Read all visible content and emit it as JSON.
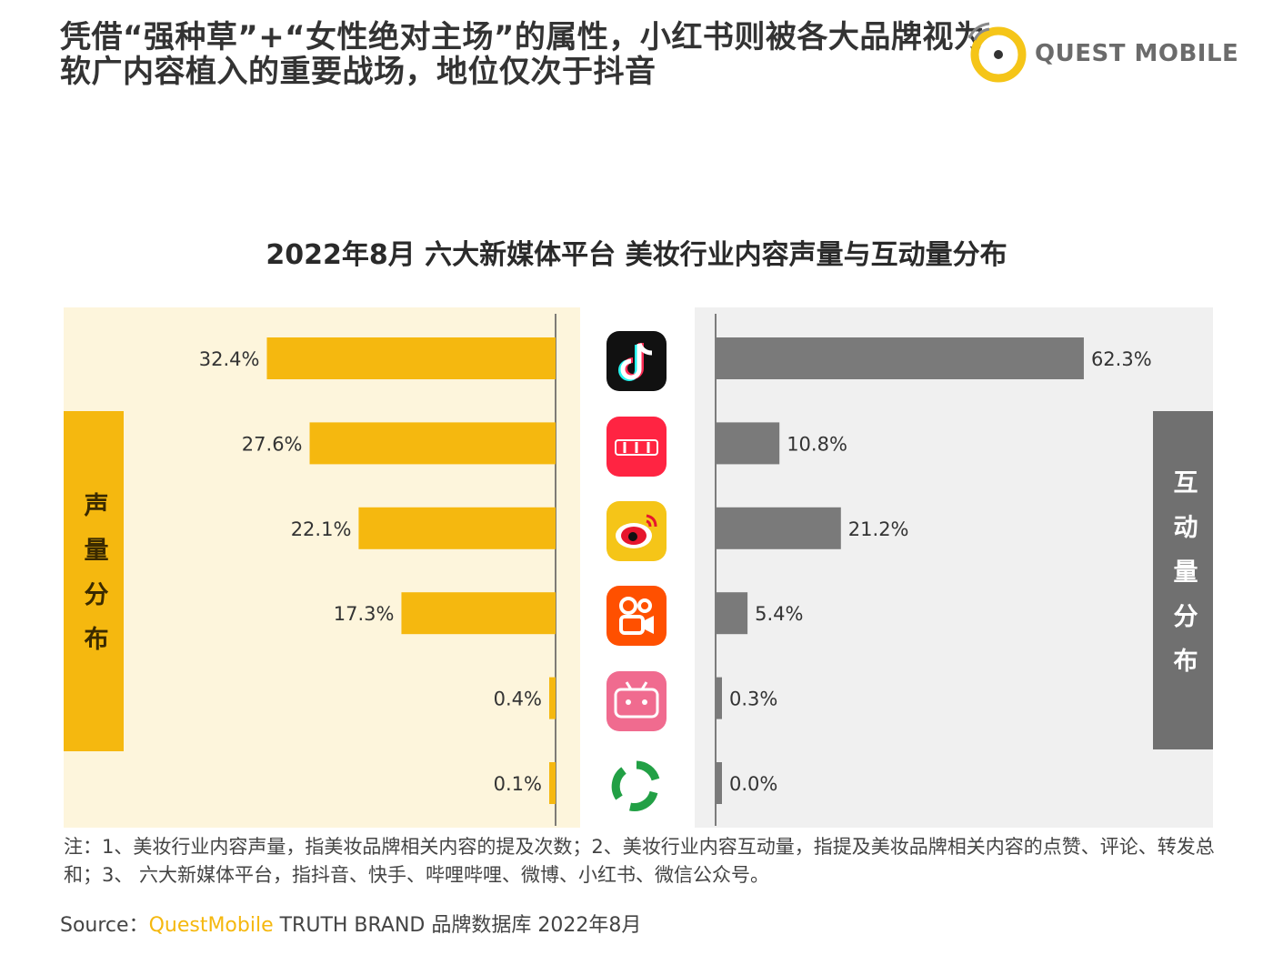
{
  "headline": {
    "line1": "凭借“强种草”+“女性绝对主场”的属性，小红书则被各大品牌视为",
    "line2": "软广内容植入的重要战场，地位仅次于抖音"
  },
  "logo": {
    "text": "QUEST MOBILE",
    "accent_color": "#f5c518"
  },
  "chart_data": {
    "type": "bar",
    "orientation": "horizontal-butterfly",
    "title": "2022年8月 六大新媒体平台 美妆行业内容声量与互动量分布",
    "categories": [
      "抖音",
      "小红书",
      "微博",
      "快手",
      "哔哩哔哩",
      "微信公众号"
    ],
    "series": [
      {
        "name": "声量分布",
        "values": [
          32.4,
          27.6,
          22.1,
          17.3,
          0.4,
          0.1
        ],
        "labels": [
          "32.4%",
          "27.6%",
          "22.1%",
          "17.3%",
          "0.4%",
          "0.1%"
        ],
        "color": "#f5b80f"
      },
      {
        "name": "互动量分布",
        "values": [
          62.3,
          10.8,
          21.2,
          5.4,
          0.3,
          0.0
        ],
        "labels": [
          "62.3%",
          "10.8%",
          "21.2%",
          "5.4%",
          "0.3%",
          "0.0%"
        ],
        "color": "#7a7a7a"
      }
    ],
    "xlim": [
      0,
      100
    ],
    "left_panel_bg": "#fdf5dc",
    "right_panel_bg": "#f0f0f0"
  },
  "side_labels": {
    "left": "声量分布",
    "right": "互动量分布"
  },
  "app_icons": [
    "tiktok-icon",
    "xiaohongshu-icon",
    "weibo-icon",
    "kuaishou-icon",
    "bilibili-icon",
    "wechat-official-icon"
  ],
  "notes": "注：1、美妆行业内容声量，指美妆品牌相关内容的提及次数；2、美妆行业内容互动量，指提及美妆品牌相关内容的点赞、评论、转发总和；3、 六大新媒体平台，指抖音、快手、哔哩哔哩、微博、小红书、微信公众号。",
  "source": {
    "prefix": "Source：",
    "brand": "QuestMobile",
    "suffix": " TRUTH BRAND 品牌数据库 2022年8月"
  }
}
